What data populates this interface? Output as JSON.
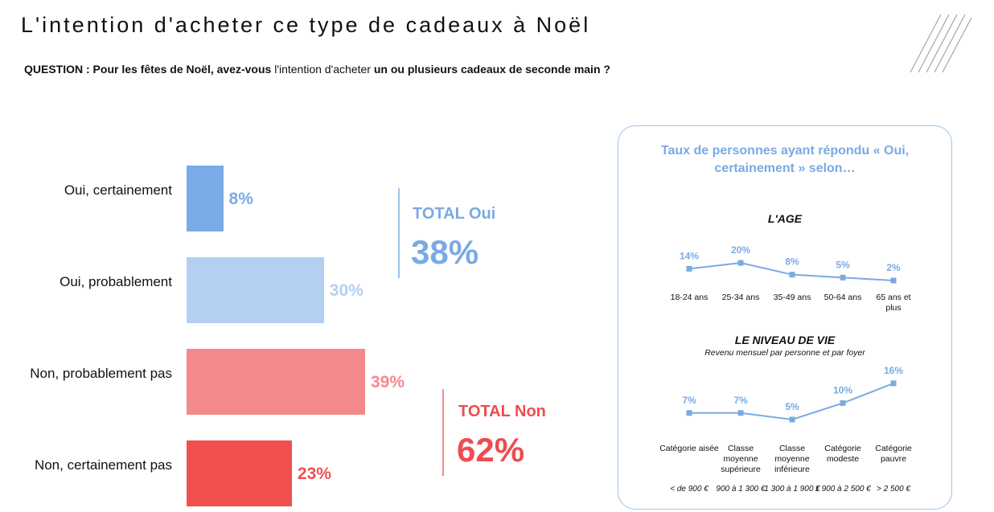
{
  "page": {
    "title": "L'intention d'acheter ce type de cadeaux à Noël",
    "question_prefix": "QUESTION : Pour les fêtes de Noël, avez-vous ",
    "question_highlight": "l'intention d'acheter",
    "question_suffix": " un ou plusieurs cadeaux de seconde main ?"
  },
  "colors": {
    "oui_certainement": "#7aaae8",
    "oui_probablement": "#b3d0f3",
    "non_probablement": "#f4898c",
    "non_certainement": "#f05050",
    "total_oui": "#7aaae2",
    "total_non": "#f04b4f",
    "line": "#7aaae2"
  },
  "chart_data": [
    {
      "type": "bar",
      "orientation": "horizontal",
      "categories": [
        "Oui, certainement",
        "Oui, probablement",
        "Non, probablement pas",
        "Non, certainement pas"
      ],
      "values": [
        8,
        30,
        39,
        23
      ],
      "value_labels": [
        "8%",
        "30%",
        "39%",
        "23%"
      ],
      "xlim": [
        0,
        39
      ],
      "totals": [
        {
          "label": "TOTAL Oui",
          "value": "38%"
        },
        {
          "label": "TOTAL Non",
          "value": "62%"
        }
      ]
    },
    {
      "type": "line",
      "title": "L'AGE",
      "categories": [
        "18-24 ans",
        "25-34 ans",
        "35-49 ans",
        "50-64 ans",
        "65 ans et plus"
      ],
      "values": [
        14,
        20,
        8,
        5,
        2
      ],
      "value_labels": [
        "14%",
        "20%",
        "8%",
        "5%",
        "2%"
      ]
    },
    {
      "type": "line",
      "title": "LE NIVEAU DE VIE",
      "subtitle": "Revenu mensuel par personne et par foyer",
      "categories": [
        "Catégorie aisée",
        "Classe moyenne supérieure",
        "Classe moyenne inférieure",
        "Catégorie modeste",
        "Catégorie pauvre"
      ],
      "income_ranges": [
        "< de 900 €",
        "900 à 1 300 €",
        "1 300 à 1 900 €",
        "1 900 à 2 500 €",
        "> 2 500 €"
      ],
      "values": [
        7,
        7,
        5,
        10,
        16
      ],
      "value_labels": [
        "7%",
        "7%",
        "5%",
        "10%",
        "16%"
      ]
    }
  ],
  "panel": {
    "title_line1": "Taux de personnes ayant répondu « Oui,",
    "title_line2": "certainement » selon…"
  }
}
